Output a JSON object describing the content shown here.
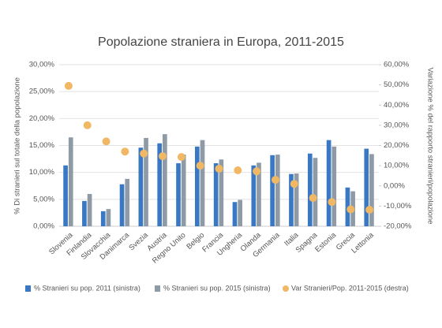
{
  "chart_data": {
    "type": "bar",
    "title": "Popolazione straniera in Europa, 2011-2015",
    "y_label": "% Di stranieri sul totale della popolazione",
    "y2_label": "Variazione % del rapporto stranieri/popolazione",
    "categories": [
      "Slovenia",
      "Finlandia",
      "Slovacchia",
      "Danimarca",
      "Svezia",
      "Austria",
      "Regno Unito",
      "Belgio",
      "Francia",
      "Ungheria",
      "Olanda",
      "Germania",
      "Italia",
      "Spagna",
      "Estonia",
      "Grecia",
      "Lettonia"
    ],
    "series": [
      {
        "name": "% Stranieri su pop. 2011 (sinistra)",
        "color": "#3a78c3",
        "type": "bar",
        "values": [
          11.3,
          4.7,
          2.8,
          7.8,
          14.6,
          15.4,
          11.7,
          14.8,
          11.7,
          4.5,
          11.3,
          13.2,
          9.7,
          13.5,
          16.0,
          7.2,
          14.4
        ]
      },
      {
        "name": "% Stranieri su pop. 2015 (sinistra)",
        "color": "#8e9aa5",
        "type": "bar",
        "values": [
          16.5,
          6.0,
          3.2,
          8.8,
          16.4,
          17.1,
          13.3,
          16.0,
          12.4,
          4.9,
          11.8,
          13.3,
          9.8,
          12.7,
          14.8,
          6.5,
          13.4
        ]
      },
      {
        "name": "Var Stranieri/Pop. 2011-2015 (destra)",
        "color": "#f0b865",
        "type": "scatter",
        "axis": "y2",
        "values": [
          49.5,
          30,
          22,
          17,
          16,
          14.7,
          14.3,
          10,
          8.5,
          7.7,
          7.2,
          3,
          1,
          -6,
          -8,
          -11.6,
          -11.8
        ]
      }
    ],
    "ylim": [
      0,
      30
    ],
    "yticks": [
      {
        "value": 0,
        "label": "0,00%"
      },
      {
        "value": 5,
        "label": "5,00%"
      },
      {
        "value": 10,
        "label": "10,00%"
      },
      {
        "value": 15,
        "label": "15,00%"
      },
      {
        "value": 20,
        "label": "20,00%"
      },
      {
        "value": 25,
        "label": "25,00%"
      },
      {
        "value": 30,
        "label": "30,00%"
      }
    ],
    "y2lim": [
      -20,
      60
    ],
    "y2ticks": [
      {
        "value": -20,
        "label": "-20,00%"
      },
      {
        "value": -10,
        "label": "-10,00%"
      },
      {
        "value": 0,
        "label": "0,00%"
      },
      {
        "value": 10,
        "label": "10,00%"
      },
      {
        "value": 20,
        "label": "20,00%"
      },
      {
        "value": 30,
        "label": "30,00%"
      },
      {
        "value": 40,
        "label": "40,00%"
      },
      {
        "value": 50,
        "label": "50,00%"
      },
      {
        "value": 60,
        "label": "60,00%"
      }
    ],
    "grid": true,
    "legend": "bottom"
  }
}
